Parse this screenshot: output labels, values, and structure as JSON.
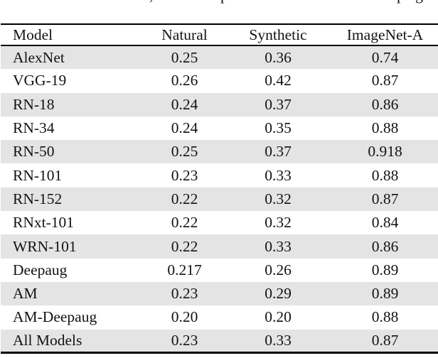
{
  "caption_fragments": [
    {
      "glyph": ","
    },
    {
      "glyph": "p"
    },
    {
      "glyph": "p"
    },
    {
      "glyph": "g"
    }
  ],
  "table": {
    "columns": [
      "Model",
      "Natural",
      "Synthetic",
      "ImageNet-A"
    ],
    "rows": [
      [
        "AlexNet",
        "0.25",
        "0.36",
        "0.74"
      ],
      [
        "VGG-19",
        "0.26",
        "0.42",
        "0.87"
      ],
      [
        "RN-18",
        "0.24",
        "0.37",
        "0.86"
      ],
      [
        "RN-34",
        "0.24",
        "0.35",
        "0.88"
      ],
      [
        "RN-50",
        "0.25",
        "0.37",
        "0.918"
      ],
      [
        "RN-101",
        "0.23",
        "0.33",
        "0.88"
      ],
      [
        "RN-152",
        "0.22",
        "0.32",
        "0.87"
      ],
      [
        "RNxt-101",
        "0.22",
        "0.32",
        "0.84"
      ],
      [
        "WRN-101",
        "0.22",
        "0.33",
        "0.86"
      ],
      [
        "Deepaug",
        "0.217",
        "0.26",
        "0.89"
      ],
      [
        "AM",
        "0.23",
        "0.29",
        "0.89"
      ],
      [
        "AM-Deepaug",
        "0.20",
        "0.20",
        "0.88"
      ],
      [
        "All Models",
        "0.23",
        "0.33",
        "0.87"
      ]
    ]
  },
  "colors": {
    "row_shade": "#e4e4e4",
    "rule": "#000000",
    "text": "#131313",
    "background": "#ffffff"
  }
}
